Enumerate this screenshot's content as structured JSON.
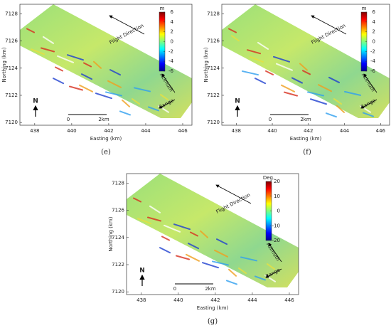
{
  "chart_data": [
    {
      "type": "raster_map",
      "caption": "(e)",
      "xlabel": "Easting (km)",
      "ylabel": "Northing (km)",
      "xlim": [
        437.2,
        446.5
      ],
      "xticks": [
        438,
        440,
        442,
        444,
        446
      ],
      "ylim": [
        7119.8,
        7128.7
      ],
      "yticks": [
        7120,
        7122,
        7124,
        7126,
        7128
      ],
      "colorbar": {
        "label": "m",
        "clim": [
          -6,
          6
        ],
        "ticks": [
          -6,
          -4,
          -2,
          0,
          2,
          4,
          6
        ]
      },
      "annotations": {
        "flight": "Flight Direction",
        "azimuth": "Azimuth",
        "range": "Range",
        "north": "N",
        "scale_start": "0",
        "scale_end": "2km"
      }
    },
    {
      "type": "raster_map",
      "caption": "(f)",
      "xlabel": "Easting (km)",
      "ylabel": "Northing (km)",
      "xlim": [
        437.2,
        446.5
      ],
      "xticks": [
        438,
        440,
        442,
        444,
        446
      ],
      "ylim": [
        7119.8,
        7128.7
      ],
      "yticks": [
        7120,
        7122,
        7124,
        7126,
        7128
      ],
      "colorbar": {
        "label": "m",
        "clim": [
          -6,
          6
        ],
        "ticks": [
          -6,
          -4,
          -2,
          0,
          2,
          4,
          6
        ]
      },
      "annotations": {
        "flight": "Flight Direction",
        "azimuth": "Azimuth",
        "range": "Range",
        "north": "N",
        "scale_start": "0",
        "scale_end": "2km"
      }
    },
    {
      "type": "raster_map",
      "caption": "(g)",
      "xlabel": "Easting (km)",
      "ylabel": "Northing (km)",
      "xlim": [
        437.2,
        446.5
      ],
      "xticks": [
        438,
        440,
        442,
        444,
        446
      ],
      "ylim": [
        7119.8,
        7128.7
      ],
      "yticks": [
        7120,
        7122,
        7124,
        7126,
        7128
      ],
      "colorbar": {
        "label": "Deg.",
        "clim": [
          -20,
          20
        ],
        "ticks": [
          -20,
          -10,
          0,
          10,
          20
        ]
      },
      "annotations": {
        "flight": "Flight Direction",
        "azimuth": "Azimuth",
        "range": "Range",
        "north": "N",
        "scale_start": "0",
        "scale_end": "2km"
      }
    }
  ]
}
